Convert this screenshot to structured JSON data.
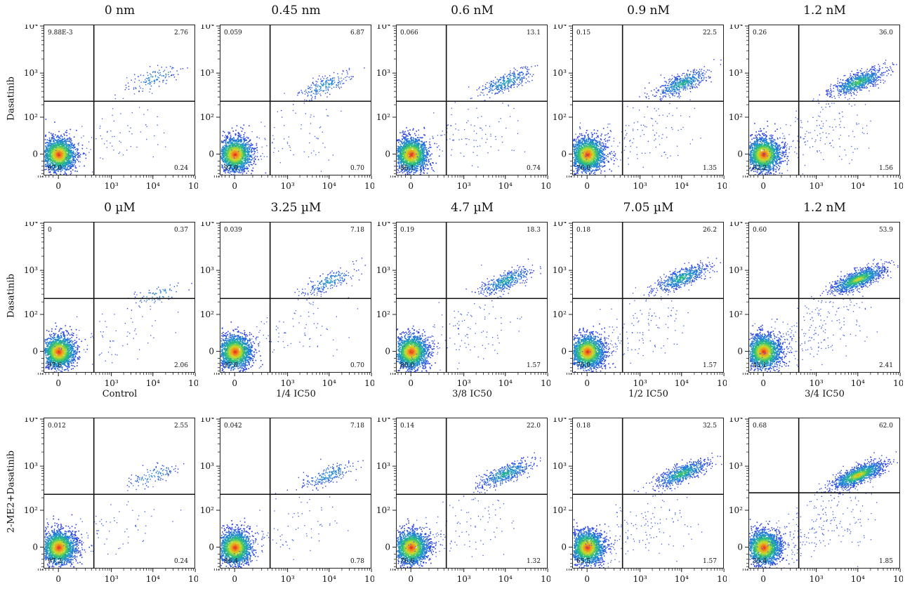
{
  "row_labels": [
    "Dasatinib",
    "Dasatinib",
    "2-ME2+Dasatinib"
  ],
  "column_labels": [
    "Control",
    "1/4 IC50",
    "3/8 IC50",
    "1/2 IC50",
    "3/4 IC50"
  ],
  "chart_data": {
    "type": "scatter",
    "axes": {
      "x_ticks": [
        "0",
        "10³",
        "10⁴",
        "10⁵"
      ],
      "y_ticks": [
        "0",
        "10²",
        "10³",
        "10⁴"
      ],
      "scale": "biexponential"
    },
    "panels": [
      {
        "row": 0,
        "col": 0,
        "title": "0 nm",
        "quadrants": {
          "ul": "9.88E-3",
          "ur": "2.76",
          "ll": "97.0",
          "lr": "0.24"
        },
        "gate": {
          "x": 350,
          "y": 240
        },
        "populations": {
          "neg": {
            "x": 0,
            "y": 0
          },
          "pos": {
            "x": 10000,
            "y": 800
          }
        }
      },
      {
        "row": 0,
        "col": 1,
        "title": "0.45 nm",
        "quadrants": {
          "ul": "0.059",
          "ur": "6.87",
          "ll": "97.0",
          "lr": "0.70"
        },
        "gate": {
          "x": 350,
          "y": 240
        },
        "populations": {
          "neg": {
            "x": 0,
            "y": 0
          },
          "pos": {
            "x": 8000,
            "y": 550
          }
        }
      },
      {
        "row": 0,
        "col": 2,
        "title": "0.6 nM",
        "quadrants": {
          "ul": "0.066",
          "ur": "13.1",
          "ll": "86.1",
          "lr": "0.74"
        },
        "gate": {
          "x": 350,
          "y": 240
        },
        "populations": {
          "neg": {
            "x": 0,
            "y": 0
          },
          "pos": {
            "x": 10000,
            "y": 650
          }
        }
      },
      {
        "row": 0,
        "col": 3,
        "title": "0.9 nM",
        "quadrants": {
          "ul": "0.15",
          "ur": "22.5",
          "ll": "76.0",
          "lr": "1.35"
        },
        "gate": {
          "x": 350,
          "y": 240
        },
        "populations": {
          "neg": {
            "x": 0,
            "y": 0
          },
          "pos": {
            "x": 10000,
            "y": 600
          }
        }
      },
      {
        "row": 0,
        "col": 4,
        "title": "1.2 nM",
        "quadrants": {
          "ul": "0.26",
          "ur": "36.0",
          "ll": "62.2",
          "lr": "1.56"
        },
        "gate": {
          "x": 350,
          "y": 240
        },
        "populations": {
          "neg": {
            "x": 0,
            "y": 0
          },
          "pos": {
            "x": 10000,
            "y": 650
          }
        }
      },
      {
        "row": 1,
        "col": 0,
        "title": "0 µM",
        "quadrants": {
          "ul": "0",
          "ur": "0.37",
          "ll": "97.6",
          "lr": "2.06"
        },
        "gate": {
          "x": 350,
          "y": 240
        },
        "populations": {
          "neg": {
            "x": 0,
            "y": 0
          },
          "pos": {
            "x": 12000,
            "y": 300
          }
        }
      },
      {
        "row": 1,
        "col": 1,
        "title": "3.25 µM",
        "quadrants": {
          "ul": "0.039",
          "ur": "7.18",
          "ll": "97.0",
          "lr": "0.70"
        },
        "gate": {
          "x": 350,
          "y": 240
        },
        "populations": {
          "neg": {
            "x": 0,
            "y": 0
          },
          "pos": {
            "x": 10000,
            "y": 600
          }
        }
      },
      {
        "row": 1,
        "col": 2,
        "title": "4.7 µM",
        "quadrants": {
          "ul": "0.19",
          "ur": "18.3",
          "ll": "80.0",
          "lr": "1.57"
        },
        "gate": {
          "x": 350,
          "y": 240
        },
        "populations": {
          "neg": {
            "x": 0,
            "y": 0
          },
          "pos": {
            "x": 10000,
            "y": 600
          }
        }
      },
      {
        "row": 1,
        "col": 3,
        "title": "7.05 µM",
        "quadrants": {
          "ul": "0.18",
          "ur": "26.2",
          "ll": "76.0",
          "lr": "1.57"
        },
        "gate": {
          "x": 350,
          "y": 240
        },
        "populations": {
          "neg": {
            "x": 0,
            "y": 0
          },
          "pos": {
            "x": 10000,
            "y": 700
          }
        }
      },
      {
        "row": 1,
        "col": 4,
        "title": "1.2 nM",
        "quadrants": {
          "ul": "0.60",
          "ur": "53.9",
          "ll": "43.1",
          "lr": "2.41"
        },
        "gate": {
          "x": 350,
          "y": 240
        },
        "populations": {
          "neg": {
            "x": 0,
            "y": 0
          },
          "pos": {
            "x": 10000,
            "y": 650
          }
        }
      },
      {
        "row": 2,
        "col": 0,
        "title": "",
        "quadrants": {
          "ul": "0.012",
          "ur": "2.55",
          "ll": "97.2",
          "lr": "0.24"
        },
        "gate": {
          "x": 350,
          "y": 240
        },
        "populations": {
          "neg": {
            "x": 0,
            "y": 0
          },
          "pos": {
            "x": 10000,
            "y": 650
          }
        }
      },
      {
        "row": 2,
        "col": 1,
        "title": "",
        "quadrants": {
          "ul": "0.042",
          "ur": "7.18",
          "ll": "86.4",
          "lr": "0.78"
        },
        "gate": {
          "x": 350,
          "y": 240
        },
        "populations": {
          "neg": {
            "x": 0,
            "y": 0
          },
          "pos": {
            "x": 9000,
            "y": 650
          }
        }
      },
      {
        "row": 2,
        "col": 2,
        "title": "",
        "quadrants": {
          "ul": "0.14",
          "ur": "22.0",
          "ll": "76.6",
          "lr": "1.32"
        },
        "gate": {
          "x": 350,
          "y": 240
        },
        "populations": {
          "neg": {
            "x": 0,
            "y": 0
          },
          "pos": {
            "x": 10000,
            "y": 700
          }
        }
      },
      {
        "row": 2,
        "col": 3,
        "title": "",
        "quadrants": {
          "ul": "0.18",
          "ur": "32.5",
          "ll": "65.5",
          "lr": "1.57"
        },
        "gate": {
          "x": 350,
          "y": 240
        },
        "populations": {
          "neg": {
            "x": 0,
            "y": 0
          },
          "pos": {
            "x": 10000,
            "y": 700
          }
        }
      },
      {
        "row": 2,
        "col": 4,
        "title": "",
        "quadrants": {
          "ul": "0.68",
          "ur": "62.0",
          "ll": "35.4",
          "lr": "1.85"
        },
        "gate": {
          "x": 350,
          "y": 260
        },
        "populations": {
          "neg": {
            "x": 0,
            "y": 0
          },
          "pos": {
            "x": 10000,
            "y": 650
          }
        }
      }
    ]
  }
}
